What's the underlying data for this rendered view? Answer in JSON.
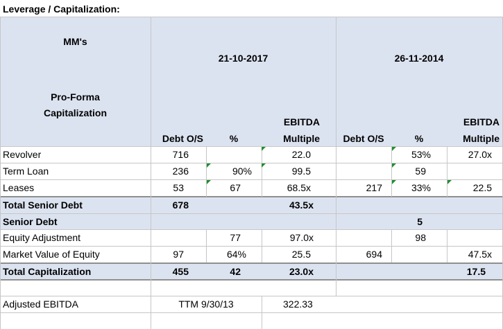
{
  "title": "Leverage / Capitalization:",
  "header": {
    "mms": "MM's",
    "date1": "21-10-2017",
    "date2": "26-11-2014",
    "proforma_line1": "Pro-Forma",
    "proforma_line2": "Capitalization",
    "cols": {
      "debt1": "Debt O/S",
      "pct1": "%",
      "ebitda1_line1": "EBITDA",
      "ebitda1_line2": "Multiple",
      "debt2": "Debt O/S",
      "pct2": "%",
      "ebitda2_line1": "EBITDA",
      "ebitda2_line2": "Multiple"
    }
  },
  "rows": [
    {
      "label": "Revolver",
      "debt1": "716",
      "pct1": "",
      "mult1": "22.0",
      "debt2": "",
      "pct2": "53%",
      "mult2": "27.0x"
    },
    {
      "label": "Term Loan",
      "debt1": "236",
      "pct1": "90%",
      "mult1": "99.5",
      "debt2": "",
      "pct2": "59",
      "mult2": ""
    },
    {
      "label": "Leases",
      "debt1": "53",
      "pct1": "67",
      "mult1": "68.5x",
      "debt2": "217",
      "pct2": "33%",
      "mult2": "22.5"
    },
    {
      "label": "Total Senior Debt",
      "debt1": "678",
      "pct1": "",
      "mult1": "43.5x",
      "debt2": "",
      "pct2": "",
      "mult2": ""
    },
    {
      "label": "Senior Debt",
      "debt1": "",
      "pct1": "",
      "mult1": "",
      "debt2": "",
      "pct2": "5",
      "mult2": ""
    },
    {
      "label": "Equity Adjustment",
      "debt1": "",
      "pct1": "77",
      "mult1": "97.0x",
      "debt2": "",
      "pct2": "98",
      "mult2": ""
    },
    {
      "label": "Market Value of Equity",
      "debt1": "97",
      "pct1": "64%",
      "mult1": "25.5",
      "debt2": "694",
      "pct2": "",
      "mult2": "47.5x"
    },
    {
      "label": "Total Capitalization",
      "debt1": "455",
      "pct1": "42",
      "mult1": "23.0x",
      "debt2": "",
      "pct2": "",
      "mult2": "17.5"
    }
  ],
  "footer": {
    "label": "Adjusted EBITDA",
    "period": "TTM 9/30/13",
    "value": "322.33"
  },
  "colors": {
    "band": "#dce3f0",
    "grid": "#c6c6c6",
    "comment_marker": "#1f8f2f"
  }
}
